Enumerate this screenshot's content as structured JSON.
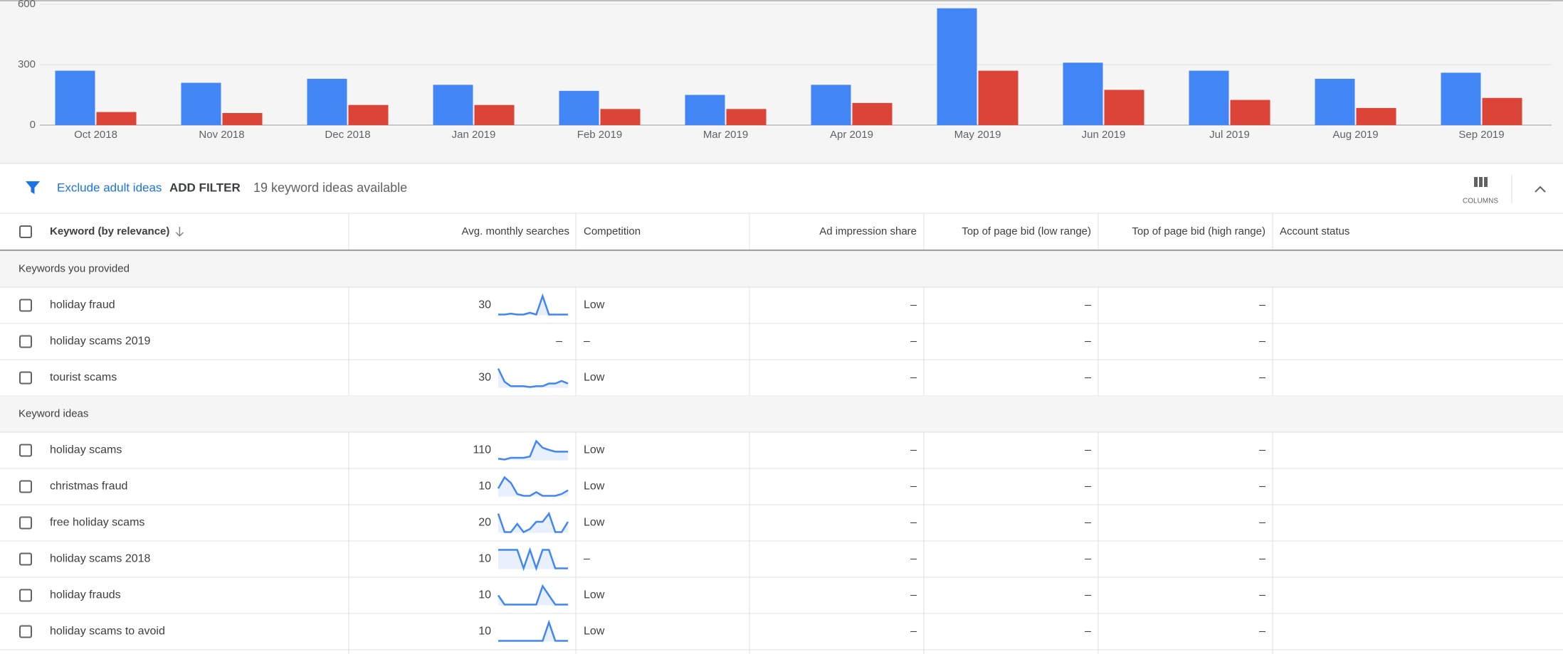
{
  "chart_data": {
    "type": "bar",
    "categories": [
      "Oct 2018",
      "Nov 2018",
      "Dec 2018",
      "Jan 2019",
      "Feb 2019",
      "Mar 2019",
      "Apr 2019",
      "May 2019",
      "Jun 2019",
      "Jul 2019",
      "Aug 2019",
      "Sep 2019"
    ],
    "series": [
      {
        "color": "#4285f4",
        "values": [
          270,
          210,
          230,
          200,
          170,
          150,
          200,
          580,
          310,
          270,
          230,
          260
        ]
      },
      {
        "color": "#db4437",
        "values": [
          65,
          60,
          100,
          100,
          80,
          80,
          110,
          270,
          175,
          125,
          85,
          135
        ]
      }
    ],
    "ylim": [
      0,
      600
    ],
    "yticks": [
      0,
      300,
      600
    ],
    "grid": true
  },
  "toolbar": {
    "filter_link": "Exclude adult ideas",
    "add_filter": "ADD FILTER",
    "count": "19 keyword ideas available",
    "columns": "COLUMNS"
  },
  "table": {
    "columns": [
      "Keyword (by relevance)",
      "Avg. monthly searches",
      "Competition",
      "Ad impression share",
      "Top of page bid (low range)",
      "Top of page bid (high range)",
      "Account status"
    ],
    "groups": [
      {
        "title": "Keywords you provided",
        "rows": [
          {
            "keyword": "holiday fraud",
            "searches": 30,
            "trend": [
              10,
              10,
              11,
              10,
              10,
              12,
              10,
              30,
              10,
              10,
              10,
              10
            ],
            "competition": "Low",
            "ad_share": "–",
            "bid_low": "–",
            "bid_high": "–"
          },
          {
            "keyword": "holiday scams 2019",
            "searches": "–",
            "competition": "–",
            "ad_share": "–",
            "bid_low": "–",
            "bid_high": "–"
          },
          {
            "keyword": "tourist scams",
            "searches": 30,
            "trend": [
              40,
              25,
              20,
              20,
              20,
              19,
              20,
              20,
              23,
              23,
              26,
              23
            ],
            "competition": "Low",
            "ad_share": "–",
            "bid_low": "–",
            "bid_high": "–"
          }
        ]
      },
      {
        "title": "Keyword ideas",
        "rows": [
          {
            "keyword": "holiday scams",
            "searches": 110,
            "trend": [
              100,
              98,
              102,
              102,
              102,
              105,
              140,
              125,
              120,
              116,
              116,
              116
            ],
            "competition": "Low",
            "ad_share": "–",
            "bid_low": "–",
            "bid_high": "–"
          },
          {
            "keyword": "christmas fraud",
            "searches": 10,
            "trend": [
              12,
              18,
              15,
              9,
              8,
              8,
              10,
              8,
              8,
              8,
              9,
              11
            ],
            "competition": "Low",
            "ad_share": "–",
            "bid_low": "–",
            "bid_high": "–"
          },
          {
            "keyword": "free holiday scams",
            "searches": 20,
            "trend": [
              30,
              12,
              12,
              20,
              12,
              15,
              22,
              22,
              30,
              12,
              12,
              22
            ],
            "competition": "Low",
            "ad_share": "–",
            "bid_low": "–",
            "bid_high": "–"
          },
          {
            "keyword": "holiday scams 2018",
            "searches": 10,
            "trend": [
              20,
              20,
              20,
              20,
              0,
              20,
              0,
              20,
              20,
              0,
              0,
              0
            ],
            "competition": "–",
            "ad_share": "–",
            "bid_low": "–",
            "bid_high": "–"
          },
          {
            "keyword": "holiday frauds",
            "searches": 10,
            "trend": [
              20,
              10,
              10,
              10,
              10,
              10,
              10,
              30,
              20,
              10,
              10,
              10
            ],
            "competition": "Low",
            "ad_share": "–",
            "bid_low": "–",
            "bid_high": "–"
          },
          {
            "keyword": "holiday scams to avoid",
            "searches": 10,
            "trend": [
              10,
              10,
              10,
              10,
              10,
              10,
              10,
              10,
              40,
              10,
              10,
              10
            ],
            "competition": "Low",
            "ad_share": "–",
            "bid_low": "–",
            "bid_high": "–"
          }
        ]
      }
    ]
  }
}
